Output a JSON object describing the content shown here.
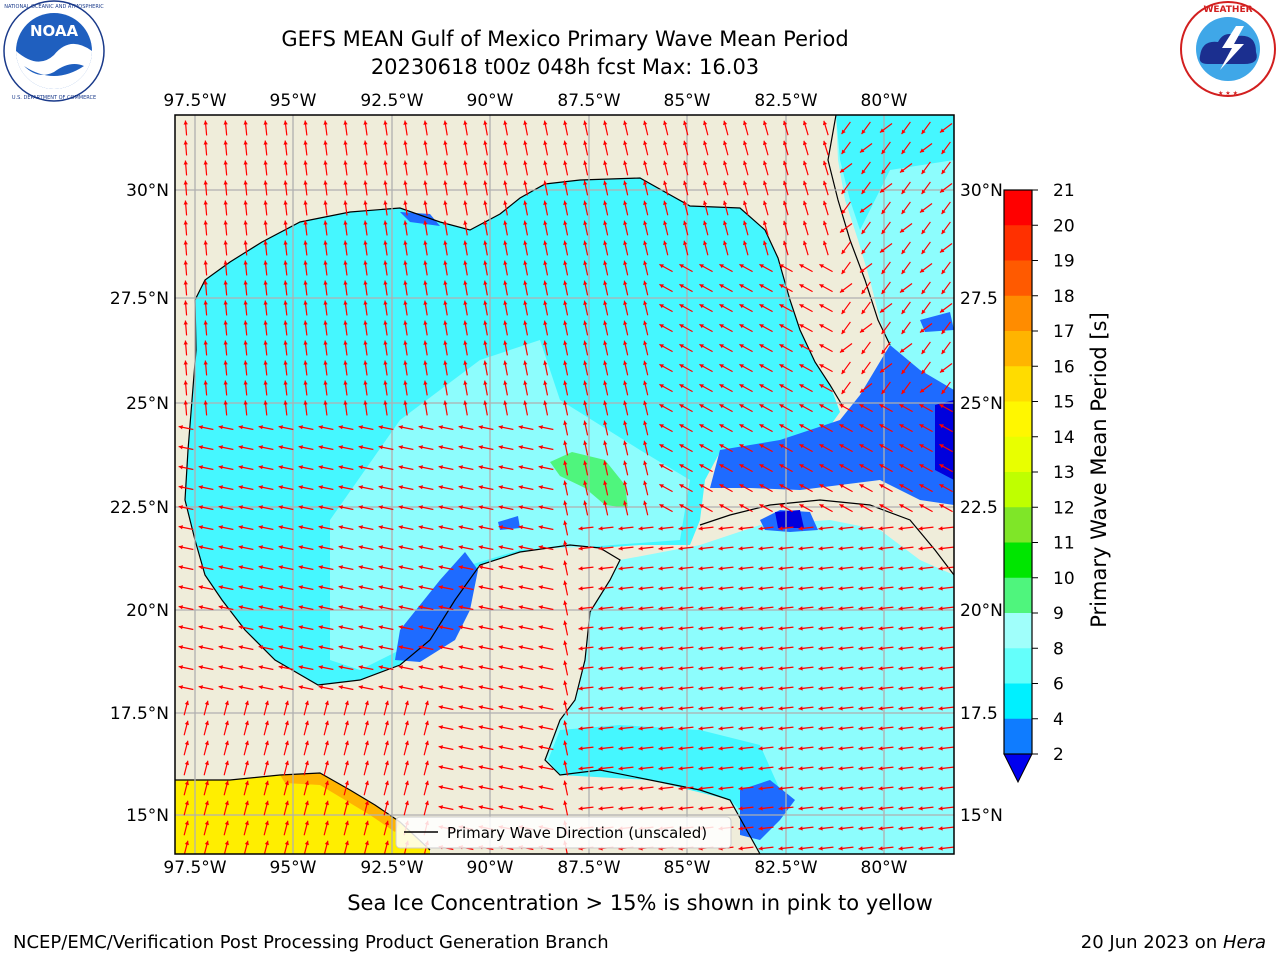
{
  "header": {
    "title_line1": "GEFS MEAN Gulf of Mexico Primary Wave Mean Period",
    "title_line2": "20230618 t00z 048h fcst   Max: 16.03"
  },
  "logos": {
    "left": {
      "name": "noaa-logo",
      "text": "NOAA",
      "ring_text": "NATIONAL OCEANIC AND ATMOSPHERIC ADMINISTRATION · U.S. DEPARTMENT OF COMMERCE"
    },
    "right": {
      "name": "nws-logo",
      "ring_text": "NATIONAL WEATHER SERVICE"
    }
  },
  "map": {
    "lon_labels": [
      "97.5°W",
      "95°W",
      "92.5°W",
      "90°W",
      "87.5°W",
      "85°W",
      "82.5°W",
      "80°W"
    ],
    "lat_labels": [
      "30°N",
      "27.5°N",
      "25°N",
      "22.5°N",
      "20°N",
      "17.5°N",
      "15°N"
    ],
    "lat_labels_right": [
      "30°N",
      "27.5",
      "25°N",
      "22.5",
      "20°N",
      "17.5",
      "15°N"
    ],
    "legend_label": "Primary Wave Direction (unscaled)",
    "colors": {
      "land": "#efedda",
      "ocean_main": "#45f7ff",
      "ocean_light": "#8dfdfd",
      "deep_blue": "#1e6bff",
      "arrow": "#ff0000",
      "ice_yellow": "#ffee00"
    }
  },
  "colorbar": {
    "label": "Primary Wave Mean Period [s]",
    "ticks": [
      "21",
      "20",
      "19",
      "18",
      "17",
      "16",
      "15",
      "14",
      "13",
      "12",
      "11",
      "10",
      "9",
      "8",
      "6",
      "4",
      "2"
    ],
    "colors": [
      "#ff0000",
      "#ff3000",
      "#ff5a00",
      "#ff8c00",
      "#ffb400",
      "#ffdc00",
      "#fff700",
      "#e8ff00",
      "#bfff00",
      "#7fe628",
      "#00e600",
      "#4ff57d",
      "#a0fffb",
      "#64fffb",
      "#00f0ff",
      "#0f7cff",
      "#0000ee"
    ]
  },
  "notes": {
    "sea_ice": "Sea Ice Concentration > 15% is shown in pink to yellow",
    "credit": "NCEP/EMC/Verification Post Processing Product Generation Branch",
    "date_prefix": "20 Jun 2023 on ",
    "date_machine": "Hera"
  }
}
